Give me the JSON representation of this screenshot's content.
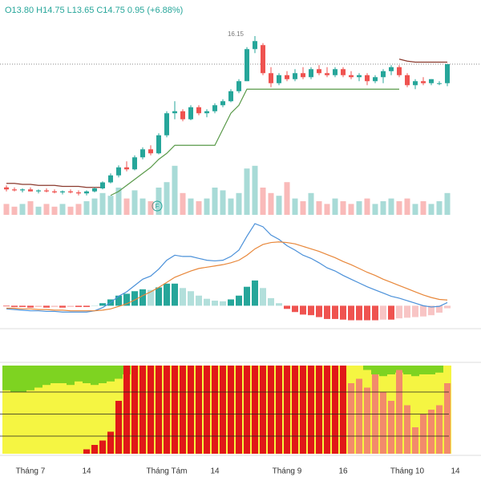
{
  "chart_data": [
    {
      "type": "candlestick",
      "header": "O13.80 H14.75 L13.65 C14.75 0.95 (+6.88%)",
      "categories": [
        null,
        null,
        null,
        "Tháng 7",
        null,
        null,
        null,
        null,
        null,
        null,
        "14",
        null,
        null,
        null,
        null,
        null,
        null,
        null,
        null,
        null,
        "Tháng Tám",
        null,
        null,
        null,
        null,
        null,
        "14",
        null,
        null,
        null,
        null,
        null,
        null,
        null,
        null,
        "Tháng 9",
        null,
        null,
        null,
        null,
        null,
        null,
        "16",
        null,
        null,
        null,
        null,
        null,
        null,
        null,
        "Tháng 10",
        null,
        null,
        null,
        null,
        null,
        "14",
        null
      ],
      "open": [
        8.6,
        8.5,
        8.45,
        8.5,
        8.4,
        8.45,
        8.4,
        8.35,
        8.4,
        8.35,
        8.3,
        8.4,
        8.55,
        8.85,
        9.2,
        9.6,
        9.5,
        10.1,
        10.5,
        10.3,
        11.2,
        12.3,
        12.4,
        12.0,
        12.6,
        12.3,
        12.4,
        12.7,
        12.9,
        13.4,
        13.9,
        15.5,
        15.7,
        14.3,
        13.8,
        14.2,
        14.0,
        14.3,
        14.1,
        14.5,
        14.3,
        14.2,
        14.5,
        14.2,
        14.1,
        14.2,
        13.9,
        14.1,
        14.4,
        14.6,
        14.2,
        13.7,
        13.9,
        13.8,
        13.8,
        13.8,
        null,
        null
      ],
      "high": [
        8.7,
        8.6,
        8.55,
        8.6,
        8.5,
        8.55,
        8.5,
        8.45,
        8.5,
        8.45,
        8.45,
        8.6,
        8.9,
        9.3,
        9.7,
        9.9,
        10.2,
        10.6,
        10.7,
        11.3,
        12.4,
        12.9,
        12.5,
        12.7,
        12.7,
        12.5,
        12.8,
        13.0,
        13.5,
        14.0,
        15.6,
        16.15,
        15.8,
        14.6,
        14.3,
        14.4,
        14.5,
        14.6,
        14.6,
        14.7,
        14.6,
        14.6,
        14.6,
        14.4,
        14.3,
        14.3,
        14.2,
        14.5,
        14.7,
        14.7,
        14.3,
        14.0,
        14.1,
        14.0,
        13.9,
        14.75,
        null,
        null
      ],
      "low": [
        8.4,
        8.4,
        8.35,
        8.4,
        8.3,
        8.35,
        8.3,
        8.25,
        8.3,
        8.2,
        8.2,
        8.35,
        8.5,
        8.8,
        9.1,
        9.4,
        9.45,
        10.0,
        10.2,
        10.25,
        11.1,
        12.0,
        11.9,
        11.95,
        12.2,
        12.1,
        12.3,
        12.6,
        12.85,
        13.3,
        13.9,
        15.3,
        14.2,
        13.6,
        13.7,
        13.9,
        13.9,
        14.0,
        14.0,
        14.2,
        14.1,
        14.1,
        14.1,
        14.0,
        13.9,
        13.7,
        13.8,
        13.8,
        14.2,
        14.1,
        13.6,
        13.5,
        13.7,
        13.7,
        13.7,
        13.65,
        null,
        null
      ],
      "close": [
        8.5,
        8.45,
        8.5,
        8.4,
        8.45,
        8.4,
        8.35,
        8.4,
        8.35,
        8.3,
        8.4,
        8.55,
        8.85,
        9.2,
        9.6,
        9.5,
        10.1,
        10.5,
        10.3,
        11.2,
        12.3,
        12.4,
        12.0,
        12.6,
        12.3,
        12.4,
        12.7,
        12.9,
        13.4,
        13.9,
        15.5,
        15.9,
        14.3,
        13.8,
        14.2,
        14.0,
        14.3,
        14.1,
        14.5,
        14.3,
        14.2,
        14.5,
        14.2,
        14.1,
        14.2,
        13.9,
        14.1,
        14.4,
        14.6,
        14.2,
        13.7,
        13.9,
        13.8,
        14.0,
        13.8,
        14.75,
        null,
        null
      ],
      "ylim": [
        7.15,
        16.75
      ],
      "up_color": "#26a69a",
      "down_color": "#ef5350",
      "series": [
        {
          "color": "#5a9a4a",
          "values": [
            null,
            null,
            null,
            null,
            null,
            null,
            null,
            null,
            null,
            null,
            null,
            null,
            null,
            8.2,
            8.4,
            8.7,
            9.0,
            9.3,
            9.6,
            10.0,
            10.3,
            10.7,
            10.7,
            10.7,
            10.7,
            10.7,
            10.7,
            11.5,
            12.3,
            12.7,
            13.5,
            13.5,
            13.5,
            13.5,
            13.5,
            13.5,
            13.5,
            13.5,
            13.5,
            13.5,
            13.5,
            13.5,
            13.5,
            13.5,
            13.5,
            13.5,
            13.5,
            13.5,
            13.5,
            13.5,
            null,
            null,
            null,
            null,
            null,
            null,
            null,
            null
          ]
        },
        {
          "color": "#8b3a2e",
          "values": [
            8.8,
            8.8,
            8.75,
            8.75,
            8.7,
            8.7,
            8.7,
            8.65,
            8.65,
            8.65,
            8.6,
            8.6,
            8.6,
            null,
            null,
            null,
            null,
            null,
            null,
            null,
            null,
            null,
            null,
            null,
            null,
            null,
            null,
            null,
            null,
            null,
            null,
            null,
            null,
            null,
            null,
            null,
            null,
            null,
            null,
            null,
            null,
            null,
            null,
            null,
            null,
            null,
            null,
            null,
            null,
            15.0,
            14.9,
            14.85,
            14.85,
            14.85,
            14.85,
            14.85,
            null,
            null
          ]
        }
      ],
      "volume": [
        2,
        1.5,
        2,
        2.5,
        1.5,
        2,
        1.5,
        2,
        1.5,
        2,
        2.5,
        3,
        4,
        3.5,
        5,
        3,
        4.5,
        3,
        2.5,
        5,
        6,
        9,
        4,
        3,
        2.5,
        3,
        5,
        4.5,
        3,
        4,
        8.5,
        9,
        5,
        4,
        3.5,
        6,
        3,
        2.5,
        4,
        2.5,
        2,
        3,
        2.5,
        2,
        2.5,
        3,
        2,
        2.5,
        3,
        2.5,
        3,
        2,
        2.5,
        2,
        2.5,
        4,
        null,
        null
      ],
      "volume_lim": [
        0,
        10
      ]
    },
    {
      "type": "macd",
      "ylim": [
        -0.3,
        1.35
      ],
      "series": [
        {
          "color": "#4a90d9",
          "values": [
            -0.05,
            -0.06,
            -0.07,
            -0.08,
            -0.08,
            -0.09,
            -0.09,
            -0.1,
            -0.1,
            -0.1,
            -0.1,
            -0.08,
            -0.03,
            0.05,
            0.15,
            0.22,
            0.32,
            0.42,
            0.47,
            0.58,
            0.72,
            0.8,
            0.78,
            0.78,
            0.75,
            0.72,
            0.71,
            0.72,
            0.78,
            0.88,
            1.1,
            1.3,
            1.25,
            1.12,
            1.05,
            0.95,
            0.88,
            0.8,
            0.75,
            0.68,
            0.6,
            0.55,
            0.48,
            0.42,
            0.36,
            0.3,
            0.25,
            0.2,
            0.15,
            0.12,
            0.08,
            0.04,
            0.0,
            -0.02,
            -0.01,
            0.05,
            null,
            null
          ]
        },
        {
          "color": "#e8873a",
          "values": [
            -0.04,
            -0.04,
            -0.05,
            -0.05,
            -0.06,
            -0.06,
            -0.07,
            -0.07,
            -0.08,
            -0.08,
            -0.08,
            -0.08,
            -0.07,
            -0.05,
            -0.01,
            0.03,
            0.09,
            0.16,
            0.22,
            0.29,
            0.37,
            0.45,
            0.5,
            0.55,
            0.59,
            0.61,
            0.63,
            0.65,
            0.68,
            0.72,
            0.8,
            0.9,
            0.97,
            1.0,
            1.01,
            1.0,
            0.98,
            0.94,
            0.9,
            0.86,
            0.81,
            0.76,
            0.7,
            0.65,
            0.59,
            0.53,
            0.48,
            0.42,
            0.37,
            0.32,
            0.27,
            0.22,
            0.17,
            0.13,
            0.1,
            0.09,
            null,
            null
          ]
        }
      ],
      "histogram": [
        -0.01,
        -0.02,
        -0.02,
        -0.03,
        -0.02,
        -0.03,
        -0.02,
        -0.03,
        -0.02,
        -0.02,
        -0.02,
        0.0,
        0.04,
        0.1,
        0.16,
        0.19,
        0.23,
        0.26,
        0.25,
        0.29,
        0.35,
        0.35,
        0.28,
        0.23,
        0.16,
        0.11,
        0.08,
        0.07,
        0.1,
        0.16,
        0.3,
        0.4,
        0.28,
        0.12,
        0.04,
        -0.05,
        -0.1,
        -0.14,
        -0.15,
        -0.18,
        -0.21,
        -0.21,
        -0.22,
        -0.23,
        -0.23,
        -0.23,
        -0.23,
        -0.22,
        -0.22,
        -0.2,
        -0.19,
        -0.18,
        -0.17,
        -0.15,
        -0.11,
        -0.04,
        null,
        null
      ]
    },
    {
      "type": "strength",
      "ylim": [
        0,
        100
      ],
      "red": [
        0,
        0,
        0,
        0,
        0,
        0,
        0,
        0,
        0,
        0,
        5,
        10,
        15,
        25,
        60,
        100,
        100,
        100,
        100,
        100,
        100,
        100,
        100,
        100,
        100,
        100,
        100,
        100,
        100,
        100,
        100,
        100,
        100,
        100,
        100,
        100,
        100,
        100,
        100,
        100,
        100,
        100,
        100,
        80,
        85,
        75,
        90,
        70,
        60,
        95,
        55,
        30,
        45,
        50,
        55,
        80,
        null,
        null
      ],
      "green": [
        28,
        30,
        30,
        28,
        25,
        22,
        20,
        20,
        22,
        18,
        20,
        22,
        20,
        18,
        15,
        10,
        0,
        0,
        0,
        0,
        0,
        0,
        0,
        0,
        0,
        0,
        0,
        0,
        0,
        0,
        0,
        0,
        0,
        0,
        0,
        0,
        0,
        0,
        0,
        0,
        0,
        0,
        0,
        0,
        0,
        5,
        10,
        12,
        10,
        8,
        10,
        12,
        10,
        10,
        8,
        0,
        null,
        null
      ]
    }
  ]
}
